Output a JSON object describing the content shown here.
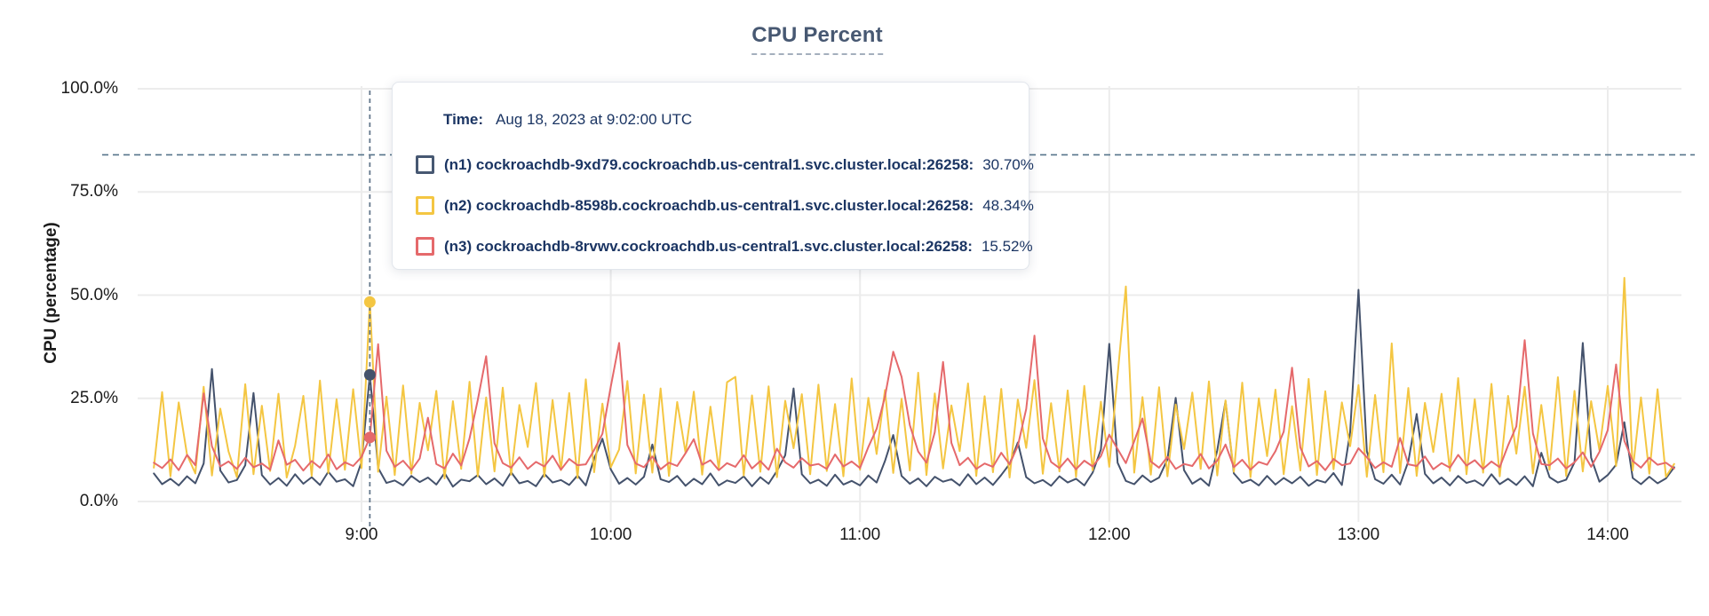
{
  "title": "CPU Percent",
  "y_axis_label": "CPU (percentage)",
  "colors": {
    "title": "#475872",
    "grid": "#ECECEC",
    "crosshair": "#64788C",
    "guideline": "#56748A",
    "tooltip_text": "#1B3563",
    "n1": "#44526C",
    "n2": "#F4C642",
    "n3": "#E5696B"
  },
  "tooltip": {
    "time_label": "Time:",
    "time_value": "Aug 18, 2023 at 9:02:00 UTC",
    "rows": [
      {
        "id": "n1",
        "label": "(n1) cockroachdb-9xd79.cockroachdb.us-central1.svc.cluster.local:26258:",
        "value": "30.70%",
        "color": "#475872"
      },
      {
        "id": "n2",
        "label": "(n2) cockroachdb-8598b.cockroachdb.us-central1.svc.cluster.local:26258:",
        "value": "48.34%",
        "color": "#F4C642"
      },
      {
        "id": "n3",
        "label": "(n3) cockroachdb-8rvwv.cockroachdb.us-central1.svc.cluster.local:26258:",
        "value": "15.52%",
        "color": "#E5696B"
      }
    ]
  },
  "chart_data": {
    "type": "line",
    "title": "CPU Percent",
    "xlabel": "",
    "ylabel": "CPU (percentage)",
    "ylim": [
      0,
      100
    ],
    "grid": true,
    "legend_position": "tooltip-overlay",
    "y_tick_values": [
      100,
      75,
      50,
      25,
      0
    ],
    "y_tick_labels": [
      "100.0%",
      "75.0%",
      "50.0%",
      "25.0%",
      "0.0%"
    ],
    "x_tick_labels": [
      "9:00",
      "10:00",
      "11:00",
      "12:00",
      "13:00",
      "14:00"
    ],
    "x_tick_minutes": [
      540,
      600,
      660,
      720,
      780,
      840
    ],
    "x_start_minute": 490,
    "x_step_minutes": 2,
    "guideline_percent": 84,
    "hover": {
      "index": 26,
      "time": "Aug 18, 2023 at 9:02:00 UTC",
      "values": {
        "n1": 30.7,
        "n2": 48.34,
        "n3": 15.52
      }
    },
    "series": [
      {
        "id": "n1",
        "name": "(n1) cockroachdb-9xd79.cockroachdb.us-central1.svc.cluster.local:26258",
        "color": "#44526C",
        "values": [
          6.8,
          4.2,
          5.5,
          3.9,
          6.1,
          4.4,
          9.2,
          32.1,
          7.5,
          4.6,
          5.2,
          8.8,
          26.3,
          6.4,
          4.1,
          5.7,
          3.8,
          6.6,
          4.3,
          5.9,
          4.0,
          7.2,
          4.8,
          5.4,
          3.7,
          9.6,
          30.7,
          8.1,
          4.5,
          5.1,
          3.9,
          6.2,
          4.7,
          5.8,
          4.1,
          6.9,
          3.6,
          5.3,
          4.9,
          6.4,
          4.2,
          5.6,
          3.8,
          7.1,
          4.4,
          5.0,
          3.7,
          6.7,
          4.6,
          5.2,
          4.0,
          6.3,
          3.9,
          10.4,
          15.2,
          7.8,
          4.3,
          5.7,
          4.1,
          6.0,
          13.8,
          5.4,
          4.7,
          6.2,
          3.8,
          5.5,
          4.2,
          6.8,
          3.9,
          5.1,
          4.5,
          6.1,
          3.7,
          5.9,
          4.3,
          7.4,
          11.2,
          27.4,
          6.6,
          4.4,
          5.3,
          3.8,
          6.5,
          4.1,
          5.0,
          3.9,
          6.3,
          4.6,
          9.8,
          16.1,
          6.2,
          4.3,
          5.6,
          3.7,
          6.0,
          4.8,
          5.4,
          3.9,
          6.6,
          4.2,
          5.8,
          4.0,
          6.4,
          9.1,
          14.3,
          5.9,
          4.4,
          5.2,
          3.8,
          6.1,
          4.6,
          5.5,
          3.9,
          7.0,
          12.6,
          38.2,
          9.4,
          5.0,
          4.2,
          6.3,
          4.7,
          5.8,
          10.2,
          25.1,
          7.6,
          4.3,
          5.6,
          3.8,
          12.4,
          24.3,
          6.8,
          4.5,
          5.3,
          3.9,
          6.2,
          4.1,
          5.7,
          4.4,
          6.0,
          3.8,
          5.2,
          4.6,
          6.9,
          4.0,
          16.8,
          51.3,
          12.2,
          5.4,
          4.3,
          6.5,
          4.1,
          9.7,
          21.2,
          6.7,
          4.4,
          5.8,
          3.9,
          6.2,
          4.5,
          5.1,
          3.8,
          6.6,
          4.2,
          5.5,
          4.0,
          6.1,
          3.7,
          11.8,
          5.9,
          4.6,
          5.3,
          9.5,
          38.4,
          10.6,
          4.8,
          6.4,
          8.9,
          19.2,
          5.7,
          4.2,
          6.0,
          4.4,
          5.6,
          8.3
        ]
      },
      {
        "id": "n2",
        "name": "(n2) cockroachdb-8598b.cockroachdb.us-central1.svc.cluster.local:26258",
        "color": "#F4C642",
        "values": [
          8.2,
          26.5,
          6.1,
          24.0,
          11.3,
          6.8,
          27.8,
          6.3,
          22.5,
          12.1,
          5.9,
          28.4,
          6.6,
          23.2,
          7.4,
          26.1,
          5.8,
          13.5,
          25.6,
          6.2,
          29.3,
          6.9,
          24.8,
          7.7,
          27.2,
          8.1,
          48.34,
          7.2,
          25.4,
          6.4,
          28.1,
          6.7,
          23.9,
          12.4,
          26.8,
          5.6,
          24.3,
          7.9,
          29.0,
          6.1,
          25.2,
          7.3,
          27.6,
          6.5,
          23.4,
          13.2,
          28.7,
          6.0,
          24.6,
          7.6,
          26.3,
          5.7,
          29.6,
          7.1,
          23.7,
          8.3,
          12.6,
          29.2,
          6.8,
          25.9,
          7.0,
          27.4,
          6.2,
          24.1,
          11.8,
          26.6,
          6.5,
          23.0,
          7.8,
          28.9,
          30.2,
          6.3,
          25.7,
          7.2,
          27.9,
          5.9,
          24.4,
          12.9,
          26.0,
          6.6,
          28.3,
          7.4,
          23.6,
          6.1,
          29.8,
          7.7,
          25.1,
          11.5,
          27.0,
          6.9,
          24.9,
          7.5,
          31.2,
          6.4,
          26.2,
          8.0,
          23.3,
          12.2,
          28.6,
          6.2,
          25.5,
          7.1,
          27.3,
          5.8,
          24.7,
          13.0,
          29.4,
          6.7,
          23.8,
          7.3,
          26.9,
          6.0,
          28.0,
          7.6,
          24.2,
          8.4,
          30.6,
          52.1,
          7.0,
          25.3,
          6.5,
          27.7,
          6.1,
          23.5,
          12.7,
          26.4,
          7.9,
          29.1,
          6.3,
          24.5,
          7.2,
          28.8,
          5.9,
          25.0,
          11.0,
          27.1,
          6.6,
          23.1,
          7.5,
          29.7,
          6.4,
          26.7,
          7.8,
          24.0,
          13.4,
          28.2,
          6.0,
          25.8,
          7.1,
          38.3,
          6.9,
          27.5,
          6.2,
          23.9,
          12.0,
          26.1,
          7.4,
          29.9,
          6.6,
          24.8,
          7.0,
          28.5,
          6.1,
          25.6,
          11.6,
          27.8,
          6.8,
          23.4,
          7.7,
          30.1,
          6.2,
          26.8,
          7.3,
          24.3,
          12.5,
          28.0,
          8.6,
          54.2,
          7.5,
          25.2,
          6.7,
          27.2,
          6.0,
          9.1
        ]
      },
      {
        "id": "n3",
        "name": "(n3) cockroachdb-8rvwv.cockroachdb.us-central1.svc.cluster.local:26258",
        "color": "#E5696B",
        "values": [
          9.4,
          8.1,
          10.2,
          7.6,
          11.3,
          8.8,
          26.2,
          13.4,
          8.5,
          9.7,
          7.9,
          10.6,
          8.3,
          9.2,
          7.7,
          14.8,
          8.9,
          10.1,
          7.5,
          9.8,
          8.2,
          11.4,
          7.8,
          9.5,
          8.6,
          10.8,
          15.52,
          38.1,
          12.3,
          8.4,
          9.9,
          7.6,
          10.4,
          20.3,
          9.1,
          8.0,
          11.6,
          8.7,
          15.3,
          24.6,
          35.2,
          14.1,
          9.3,
          8.2,
          10.7,
          7.9,
          9.6,
          8.5,
          11.1,
          7.7,
          10.3,
          8.8,
          9.0,
          12.5,
          16.4,
          27.8,
          38.4,
          13.7,
          9.2,
          8.3,
          10.9,
          7.8,
          9.4,
          8.6,
          11.7,
          15.1,
          8.9,
          10.0,
          7.6,
          9.3,
          8.4,
          11.2,
          8.0,
          9.8,
          7.7,
          12.8,
          9.5,
          8.2,
          10.5,
          8.7,
          9.1,
          7.9,
          11.4,
          8.5,
          9.7,
          8.1,
          13.2,
          17.6,
          25.4,
          36.3,
          30.2,
          18.5,
          12.1,
          9.4,
          16.8,
          33.8,
          14.2,
          8.8,
          10.6,
          7.9,
          9.2,
          8.4,
          11.8,
          9.0,
          13.5,
          22.4,
          40.2,
          15.3,
          9.6,
          8.1,
          10.4,
          7.8,
          9.9,
          8.5,
          11.0,
          16.2,
          12.7,
          9.3,
          14.6,
          20.1,
          9.7,
          8.2,
          10.8,
          7.9,
          9.1,
          8.6,
          11.5,
          8.0,
          9.9,
          13.8,
          8.3,
          10.1,
          7.7,
          9.6,
          8.9,
          12.2,
          16.9,
          32.4,
          13.1,
          8.5,
          9.8,
          7.6,
          10.3,
          8.8,
          9.2,
          12.9,
          10.7,
          8.1,
          9.5,
          8.4,
          15.4,
          9.0,
          8.6,
          10.9,
          7.8,
          9.3,
          8.2,
          11.3,
          8.7,
          10.0,
          7.9,
          9.7,
          8.3,
          13.6,
          18.2,
          39.1,
          16.5,
          9.1,
          8.8,
          10.4,
          8.0,
          9.5,
          11.9,
          8.4,
          12.0,
          17.3,
          33.2,
          14.7,
          9.8,
          8.2,
          10.6,
          8.9,
          9.4,
          8.0
        ]
      }
    ]
  }
}
